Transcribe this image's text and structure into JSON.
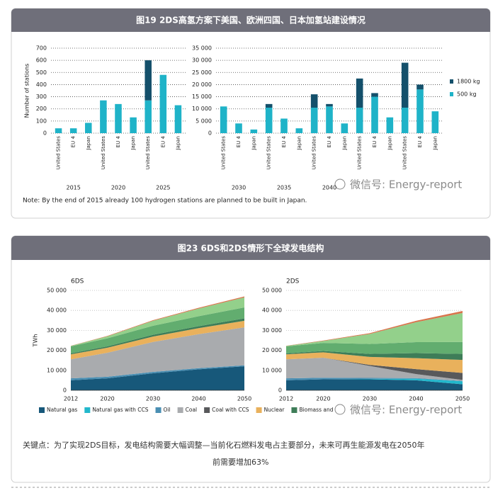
{
  "watermark": "微信号: Energy-report",
  "figures": [
    {
      "title": "图19 2DS高氢方案下美国、欧洲四国、日本加氢站建设情况",
      "note": "Note: By the end of 2015 already 100 hydrogen stations are planned to be built in Japan."
    },
    {
      "title": "图23 6DS和2DS情形下全球发电结构",
      "caption": [
        "关键点：为了实现2DS目标，发电结构需要大幅调整—当前化石燃料发电占主要部分，未来可再生能源发电在2050年",
        "前需要增加63%"
      ]
    }
  ],
  "chart_data": [
    {
      "type": "bar",
      "stacked": true,
      "ylabel": "Number of stations",
      "categories": [
        "United States",
        "EU 4",
        "Japan",
        "United States",
        "EU 4",
        "Japan",
        "United States",
        "EU 4",
        "Japan"
      ],
      "groups": [
        "2015",
        "2020",
        "2025"
      ],
      "series": [
        {
          "name": "1800 kg",
          "color": "#14506b",
          "values": [
            0,
            0,
            0,
            0,
            0,
            0,
            330,
            0,
            0
          ]
        },
        {
          "name": "500 kg",
          "color": "#1fb3c8",
          "values": [
            40,
            40,
            85,
            270,
            240,
            130,
            270,
            480,
            230
          ]
        }
      ],
      "ylim": [
        0,
        700
      ],
      "yticks": [
        0,
        100,
        200,
        300,
        400,
        500,
        600,
        700
      ],
      "grid": true
    },
    {
      "type": "bar",
      "stacked": true,
      "legend": "right",
      "categories": [
        "United States",
        "EU 4",
        "Japan",
        "United States",
        "EU 4",
        "Japan",
        "United States",
        "EU 4",
        "Japan",
        "United States",
        "EU 4",
        "Japan",
        "United States",
        "EU 4",
        "Japan"
      ],
      "groups": [
        "2030",
        "2035",
        "2040",
        null,
        null
      ],
      "series": [
        {
          "name": "1800 kg",
          "color": "#14506b",
          "values": [
            0,
            0,
            0,
            1500,
            0,
            0,
            5500,
            1000,
            0,
            12000,
            1500,
            0,
            18500,
            2000,
            0
          ]
        },
        {
          "name": "500 kg",
          "color": "#1fb3c8",
          "values": [
            11000,
            4000,
            1500,
            10500,
            6000,
            2000,
            10500,
            11000,
            4000,
            10500,
            15000,
            6500,
            10500,
            18000,
            9000
          ]
        }
      ],
      "ylim": [
        0,
        35000
      ],
      "yticks": [
        0,
        {
          "value": 5000,
          "label": "5 000"
        },
        {
          "value": 10000,
          "label": "10 000"
        },
        {
          "value": 15000,
          "label": "15 000"
        },
        {
          "value": 20000,
          "label": "20 000"
        },
        {
          "value": 25000,
          "label": "25 000"
        },
        {
          "value": 30000,
          "label": "30 000"
        },
        {
          "value": 35000,
          "label": "35 000"
        }
      ],
      "grid": true
    },
    {
      "type": "area",
      "title": "6DS",
      "ylabel": "TWh",
      "legend": "bottom",
      "x": [
        2012,
        2020,
        2030,
        2040,
        2050
      ],
      "xlim": [
        2012,
        2050
      ],
      "xticks": [
        2012,
        2020,
        2030,
        2040,
        2050
      ],
      "series": [
        {
          "name": "Natural gas",
          "color": "#17587a",
          "values": [
            5000,
            6000,
            8500,
            10500,
            12000
          ]
        },
        {
          "name": "Natural gas with CCS",
          "color": "#22b8cc",
          "values": [
            0,
            0,
            0,
            0,
            0
          ]
        },
        {
          "name": "Oil",
          "color": "#4a8fb3",
          "values": [
            1000,
            800,
            700,
            600,
            500
          ]
        },
        {
          "name": "Coal",
          "color": "#a9abae",
          "values": [
            9500,
            12000,
            15000,
            17000,
            19000
          ]
        },
        {
          "name": "Coal with CCS",
          "color": "#58595b",
          "values": [
            0,
            0,
            0,
            0,
            0
          ]
        },
        {
          "name": "Nuclear",
          "color": "#e9b15c",
          "values": [
            2500,
            2500,
            2700,
            3000,
            3300
          ]
        },
        {
          "name": "Biomass and",
          "color": "#3e7d58",
          "values": [
            500,
            700,
            900,
            1000,
            1200
          ]
        },
        {
          "name": null,
          "color": "#62ad6f",
          "values": [
            3500,
            4000,
            4500,
            5000,
            5500
          ]
        },
        {
          "name": null,
          "color": "#93d08b",
          "values": [
            200,
            1000,
            2500,
            3800,
            5000
          ]
        },
        {
          "name": null,
          "color": "#d9744c",
          "values": [
            100,
            200,
            300,
            400,
            500
          ]
        }
      ],
      "ylim": [
        0,
        50000
      ],
      "yticks": [
        0,
        {
          "value": 10000,
          "label": "10 000"
        },
        {
          "value": 20000,
          "label": "20 000"
        },
        {
          "value": 30000,
          "label": "30 000"
        },
        {
          "value": 40000,
          "label": "40 000"
        },
        {
          "value": 50000,
          "label": "50 000"
        }
      ],
      "grid": true
    },
    {
      "type": "area",
      "title": "2DS",
      "x": [
        2012,
        2020,
        2030,
        2040,
        2050
      ],
      "xlim": [
        2012,
        2050
      ],
      "xticks": [
        2012,
        2020,
        2030,
        2040,
        2050
      ],
      "series": [
        {
          "color": "#17587a",
          "values": [
            5000,
            5500,
            5500,
            5000,
            3000
          ]
        },
        {
          "color": "#22b8cc",
          "values": [
            0,
            0,
            200,
            800,
            1500
          ]
        },
        {
          "color": "#4a8fb3",
          "values": [
            1000,
            800,
            500,
            300,
            200
          ]
        },
        {
          "color": "#a9abae",
          "values": [
            9500,
            10000,
            6000,
            2000,
            500
          ]
        },
        {
          "color": "#58595b",
          "values": [
            0,
            0,
            500,
            2500,
            3500
          ]
        },
        {
          "color": "#e9b15c",
          "values": [
            2500,
            2700,
            4000,
            5500,
            6500
          ]
        },
        {
          "color": "#3e7d58",
          "values": [
            500,
            700,
            1500,
            2500,
            3000
          ]
        },
        {
          "color": "#62ad6f",
          "values": [
            3500,
            4000,
            5000,
            5500,
            6000
          ]
        },
        {
          "color": "#93d08b",
          "values": [
            200,
            1000,
            5000,
            10000,
            14500
          ]
        },
        {
          "color": "#d9744c",
          "values": [
            100,
            200,
            400,
            700,
            1000
          ]
        }
      ],
      "ylim": [
        0,
        50000
      ],
      "yticks": [
        0,
        {
          "value": 10000,
          "label": "10 000"
        },
        {
          "value": 20000,
          "label": "20 000"
        },
        {
          "value": 30000,
          "label": "30 000"
        },
        {
          "value": 40000,
          "label": "40 000"
        },
        {
          "value": 50000,
          "label": "50 000"
        }
      ],
      "grid": true
    }
  ]
}
